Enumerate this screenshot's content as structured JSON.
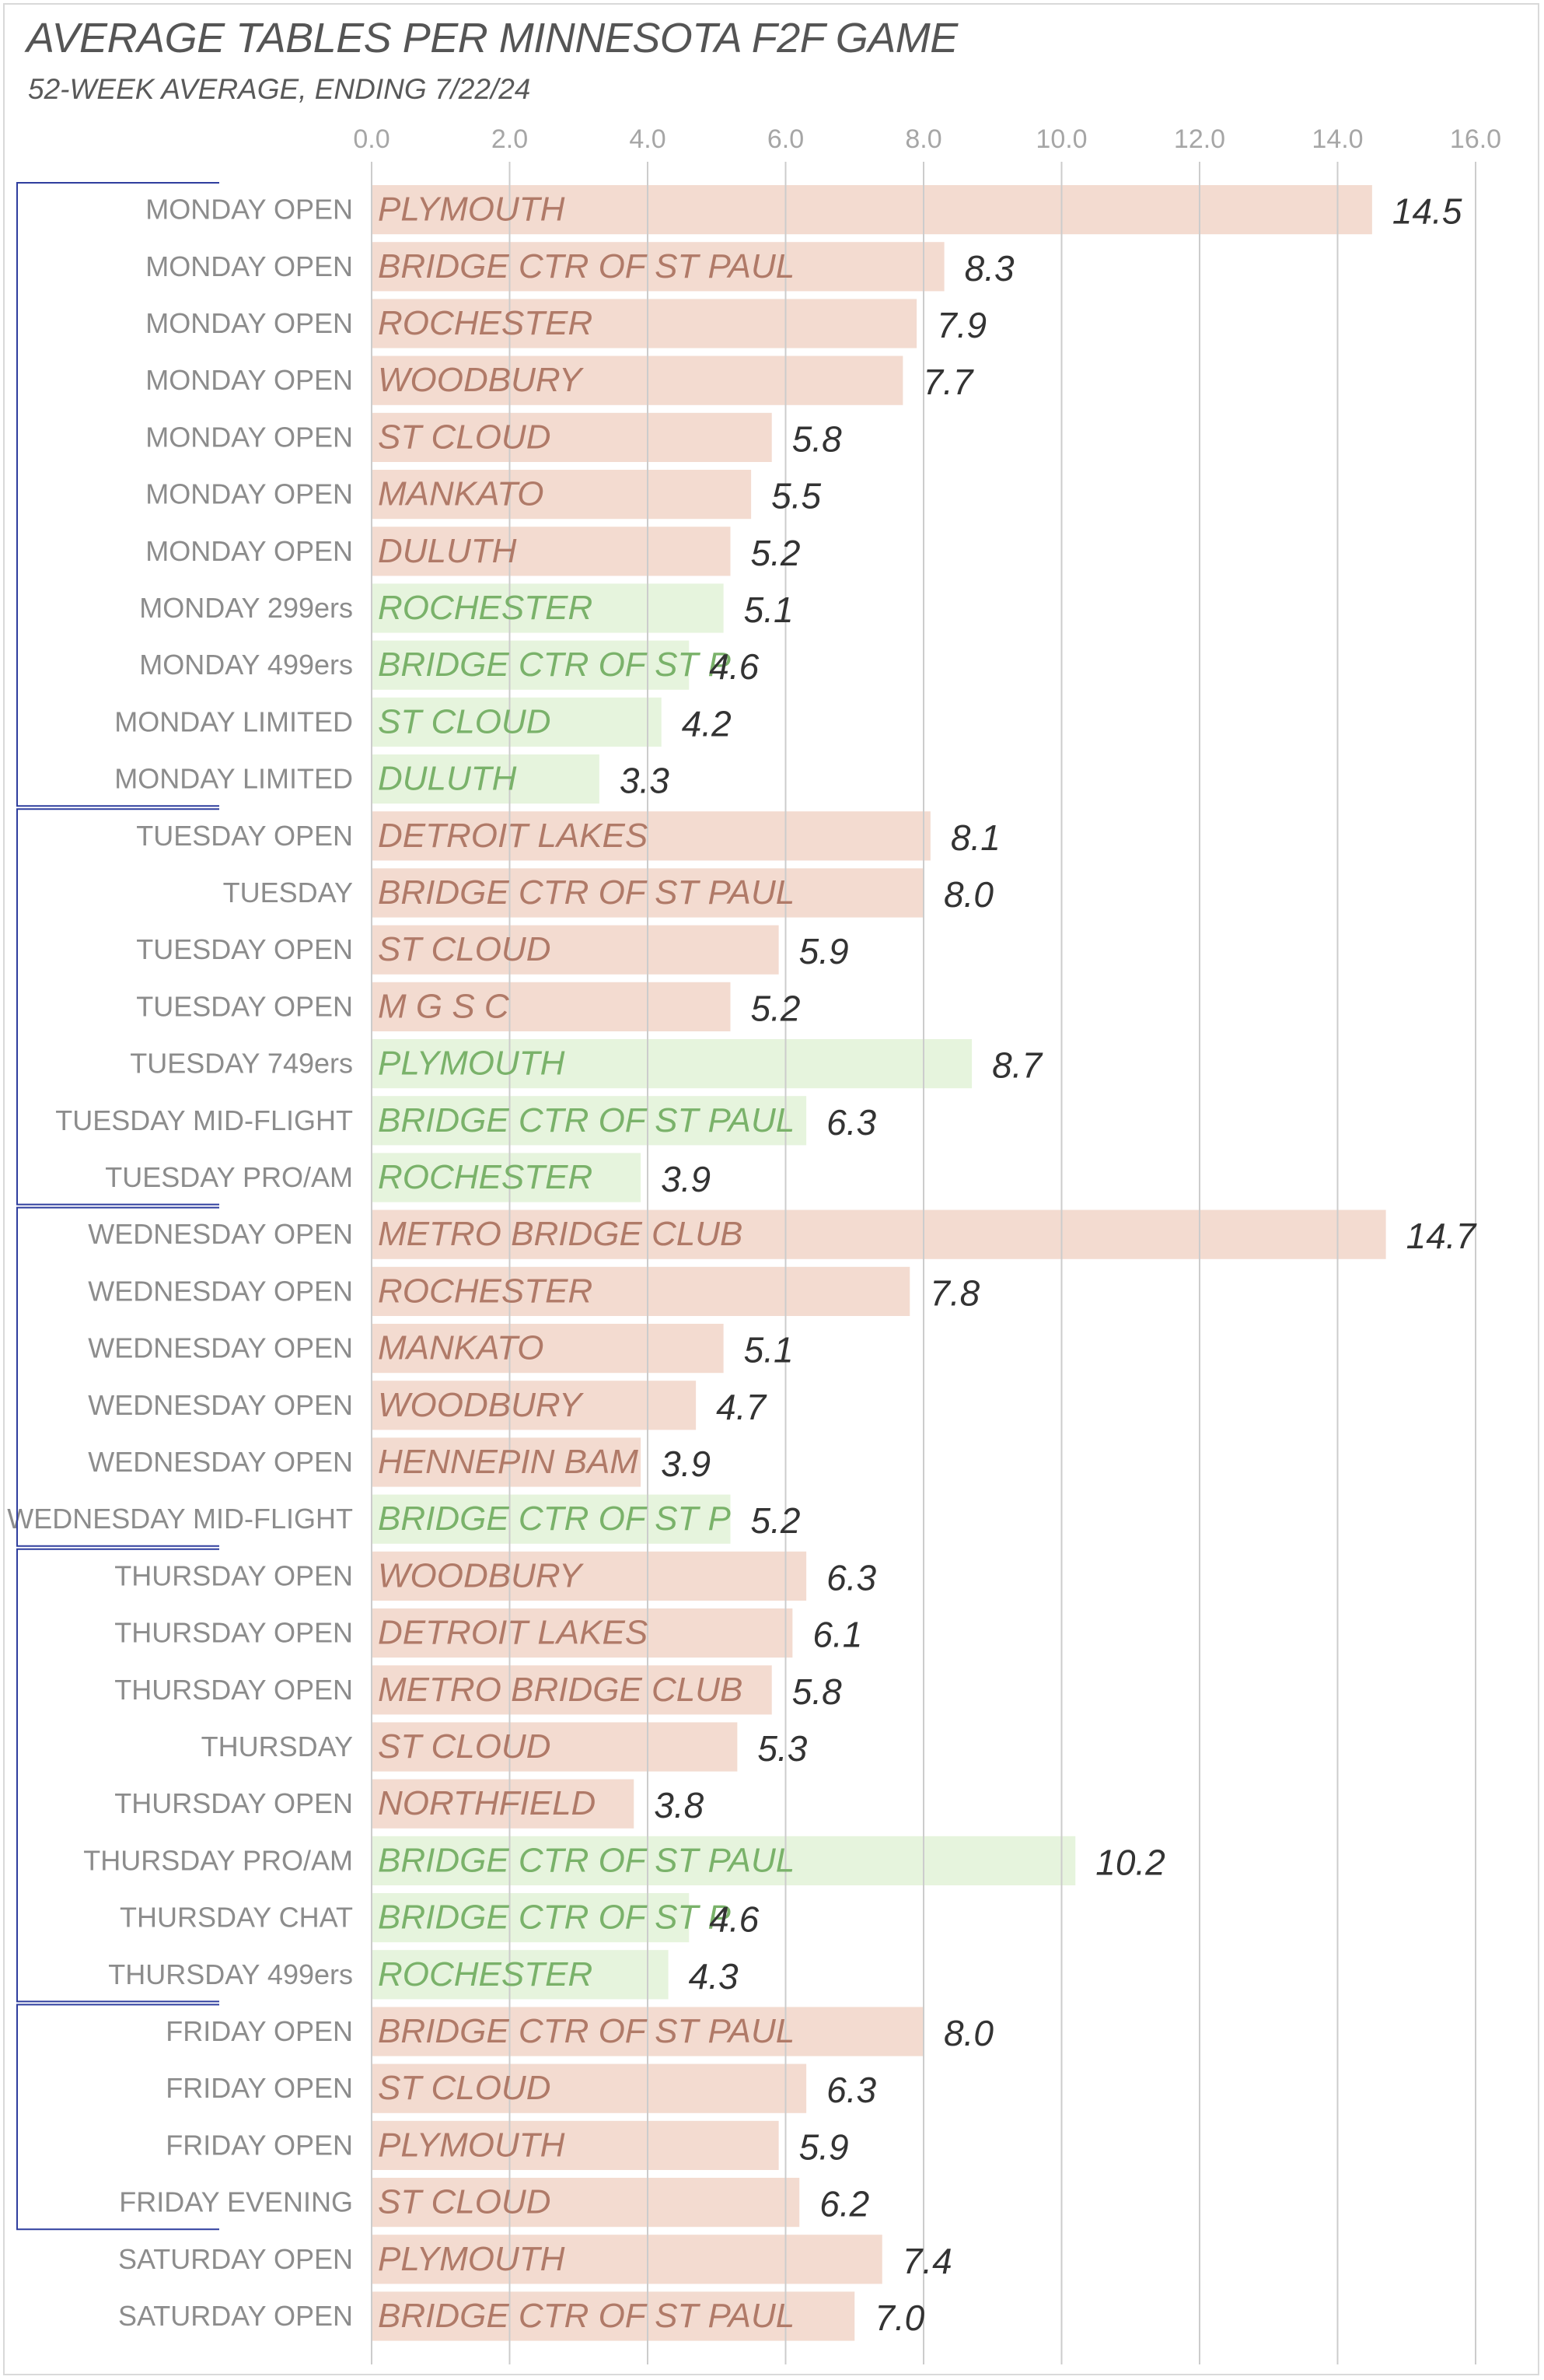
{
  "title": "AVERAGE TABLES PER MINNESOTA F2F GAME",
  "subtitle": "52-WEEK AVERAGE, ENDING 7/22/24",
  "colors": {
    "open_fill": "#f3dbd0",
    "open_text": "#b07a68",
    "limited_fill": "#e6f4dd",
    "limited_text": "#7ab26a",
    "gridline": "#cccccc",
    "bracket": "#2f3e9e",
    "tick_text": "#a6a6a6",
    "category_text": "#8c8c8c",
    "value_text": "#333333"
  },
  "chart_data": {
    "type": "bar",
    "orientation": "horizontal",
    "xlim": [
      0,
      16
    ],
    "ticks": [
      "0.0",
      "2.0",
      "4.0",
      "6.0",
      "8.0",
      "10.0",
      "12.0",
      "14.0",
      "16.0"
    ],
    "grid": true,
    "groups": [
      {
        "day": "Monday",
        "rows": [
          0,
          10
        ]
      },
      {
        "day": "Tuesday",
        "rows": [
          11,
          17
        ]
      },
      {
        "day": "Wednesday",
        "rows": [
          18,
          23
        ]
      },
      {
        "day": "Thursday",
        "rows": [
          24,
          31
        ]
      },
      {
        "day": "Friday",
        "rows": [
          32,
          35
        ]
      }
    ],
    "bars": [
      {
        "category": "MONDAY OPEN",
        "club": "PLYMOUTH",
        "value": 14.5,
        "label": "14.5",
        "kind": "open"
      },
      {
        "category": "MONDAY OPEN",
        "club": "BRIDGE CTR OF ST PAUL",
        "value": 8.3,
        "label": "8.3",
        "kind": "open"
      },
      {
        "category": "MONDAY OPEN",
        "club": "ROCHESTER",
        "value": 7.9,
        "label": "7.9",
        "kind": "open"
      },
      {
        "category": "MONDAY OPEN",
        "club": "WOODBURY",
        "value": 7.7,
        "label": "7.7",
        "kind": "open"
      },
      {
        "category": "MONDAY OPEN",
        "club": "ST CLOUD",
        "value": 5.8,
        "label": "5.8",
        "kind": "open"
      },
      {
        "category": "MONDAY OPEN",
        "club": "MANKATO",
        "value": 5.5,
        "label": "5.5",
        "kind": "open"
      },
      {
        "category": "MONDAY OPEN",
        "club": "DULUTH",
        "value": 5.2,
        "label": "5.2",
        "kind": "open"
      },
      {
        "category": "MONDAY 299ers",
        "club": "ROCHESTER",
        "value": 5.1,
        "label": "5.1",
        "kind": "limited"
      },
      {
        "category": "MONDAY 499ers",
        "club": "BRIDGE CTR OF ST P",
        "value": 4.6,
        "label": "4.6",
        "kind": "limited"
      },
      {
        "category": "MONDAY LIMITED",
        "club": "ST CLOUD",
        "value": 4.2,
        "label": "4.2",
        "kind": "limited"
      },
      {
        "category": "MONDAY LIMITED",
        "club": "DULUTH",
        "value": 3.3,
        "label": "3.3",
        "kind": "limited"
      },
      {
        "category": "TUESDAY OPEN",
        "club": "DETROIT LAKES",
        "value": 8.1,
        "label": "8.1",
        "kind": "open"
      },
      {
        "category": "TUESDAY",
        "club": "BRIDGE CTR OF ST PAUL",
        "value": 8.0,
        "label": "8.0",
        "kind": "open"
      },
      {
        "category": "TUESDAY OPEN",
        "club": "ST CLOUD",
        "value": 5.9,
        "label": "5.9",
        "kind": "open"
      },
      {
        "category": "TUESDAY OPEN",
        "club": "M G S C",
        "value": 5.2,
        "label": "5.2",
        "kind": "open"
      },
      {
        "category": "TUESDAY 749ers",
        "club": "PLYMOUTH",
        "value": 8.7,
        "label": "8.7",
        "kind": "limited"
      },
      {
        "category": "TUESDAY MID-FLIGHT",
        "club": "BRIDGE CTR OF ST PAUL",
        "value": 6.3,
        "label": "6.3",
        "kind": "limited"
      },
      {
        "category": "TUESDAY PRO/AM",
        "club": "ROCHESTER",
        "value": 3.9,
        "label": "3.9",
        "kind": "limited"
      },
      {
        "category": "WEDNESDAY OPEN",
        "club": "METRO BRIDGE CLUB",
        "value": 14.7,
        "label": "14.7",
        "kind": "open"
      },
      {
        "category": "WEDNESDAY OPEN",
        "club": "ROCHESTER",
        "value": 7.8,
        "label": "7.8",
        "kind": "open"
      },
      {
        "category": "WEDNESDAY OPEN",
        "club": "MANKATO",
        "value": 5.1,
        "label": "5.1",
        "kind": "open"
      },
      {
        "category": "WEDNESDAY OPEN",
        "club": "WOODBURY",
        "value": 4.7,
        "label": "4.7",
        "kind": "open"
      },
      {
        "category": "WEDNESDAY OPEN",
        "club": "HENNEPIN BAM",
        "value": 3.9,
        "label": "3.9",
        "kind": "open"
      },
      {
        "category": "WEDNESDAY MID-FLIGHT",
        "club": "BRIDGE CTR OF ST P",
        "value": 5.2,
        "label": "5.2",
        "kind": "limited"
      },
      {
        "category": "THURSDAY OPEN",
        "club": "WOODBURY",
        "value": 6.3,
        "label": "6.3",
        "kind": "open"
      },
      {
        "category": "THURSDAY OPEN",
        "club": "DETROIT LAKES",
        "value": 6.1,
        "label": "6.1",
        "kind": "open"
      },
      {
        "category": "THURSDAY OPEN",
        "club": "METRO BRIDGE CLUB",
        "value": 5.8,
        "label": "5.8",
        "kind": "open"
      },
      {
        "category": "THURSDAY",
        "club": "ST CLOUD",
        "value": 5.3,
        "label": "5.3",
        "kind": "open"
      },
      {
        "category": "THURSDAY OPEN",
        "club": "NORTHFIELD",
        "value": 3.8,
        "label": "3.8",
        "kind": "open"
      },
      {
        "category": "THURSDAY PRO/AM",
        "club": "BRIDGE CTR OF ST PAUL",
        "value": 10.2,
        "label": "10.2",
        "kind": "limited"
      },
      {
        "category": "THURSDAY CHAT",
        "club": "BRIDGE CTR OF ST P",
        "value": 4.6,
        "label": "4.6",
        "kind": "limited"
      },
      {
        "category": "THURSDAY 499ers",
        "club": "ROCHESTER",
        "value": 4.3,
        "label": "4.3",
        "kind": "limited"
      },
      {
        "category": "FRIDAY OPEN",
        "club": "BRIDGE CTR OF ST PAUL",
        "value": 8.0,
        "label": "8.0",
        "kind": "open"
      },
      {
        "category": "FRIDAY OPEN",
        "club": "ST CLOUD",
        "value": 6.3,
        "label": "6.3",
        "kind": "open"
      },
      {
        "category": "FRIDAY OPEN",
        "club": "PLYMOUTH",
        "value": 5.9,
        "label": "5.9",
        "kind": "open"
      },
      {
        "category": "FRIDAY EVENING",
        "club": "ST CLOUD",
        "value": 6.2,
        "label": "6.2",
        "kind": "open"
      },
      {
        "category": "SATURDAY OPEN",
        "club": "PLYMOUTH",
        "value": 7.4,
        "label": "7.4",
        "kind": "open"
      },
      {
        "category": "SATURDAY OPEN",
        "club": "BRIDGE CTR OF ST PAUL",
        "value": 7.0,
        "label": "7.0",
        "kind": "open"
      }
    ]
  }
}
